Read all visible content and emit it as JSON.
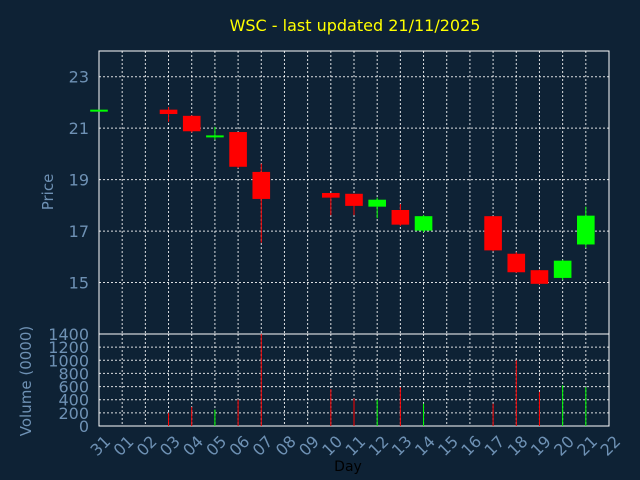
{
  "chart_data": {
    "title": "WSC - last updated 21/11/2025",
    "xlabel": "Day",
    "price_panel": {
      "type": "candlestick",
      "ylabel": "Price",
      "ylim": [
        13.0,
        24.0
      ],
      "yticks": [
        15,
        17,
        19,
        21,
        23
      ],
      "grid": true
    },
    "volume_panel": {
      "type": "bar",
      "ylabel": "Volume (0000)",
      "ylim": [
        0,
        1400
      ],
      "yticks": [
        0,
        200,
        400,
        600,
        800,
        1000,
        1200,
        1400
      ],
      "grid": true
    },
    "x_tick_labels": [
      "31",
      "01",
      "02",
      "03",
      "04",
      "05",
      "06",
      "07",
      "08",
      "09",
      "10",
      "11",
      "12",
      "13",
      "14",
      "15",
      "16",
      "17",
      "18",
      "19",
      "20",
      "21",
      "22"
    ],
    "colors": {
      "up": "#00ff00",
      "down": "#ff0000",
      "flat": "#00ff00"
    },
    "candles": [
      {
        "day": "31",
        "open": 21.72,
        "high": 21.72,
        "low": 21.72,
        "close": 21.72,
        "volume": 0
      },
      {
        "day": "03",
        "open": 21.72,
        "high": 21.82,
        "low": 21.25,
        "close": 21.55,
        "volume": 200
      },
      {
        "day": "04",
        "open": 21.48,
        "high": 21.5,
        "low": 20.83,
        "close": 20.88,
        "volume": 290
      },
      {
        "day": "05",
        "open": 20.7,
        "high": 21.05,
        "low": 20.55,
        "close": 20.72,
        "volume": 250
      },
      {
        "day": "06",
        "open": 20.85,
        "high": 20.85,
        "low": 19.45,
        "close": 19.5,
        "volume": 400
      },
      {
        "day": "07",
        "open": 19.3,
        "high": 19.62,
        "low": 16.55,
        "close": 18.25,
        "volume": 1400
      },
      {
        "day": "10",
        "open": 18.48,
        "high": 18.48,
        "low": 17.62,
        "close": 18.3,
        "volume": 560
      },
      {
        "day": "11",
        "open": 18.45,
        "high": 18.45,
        "low": 17.62,
        "close": 17.98,
        "volume": 420
      },
      {
        "day": "12",
        "open": 17.95,
        "high": 18.3,
        "low": 17.5,
        "close": 18.22,
        "volume": 400
      },
      {
        "day": "13",
        "open": 17.82,
        "high": 18.05,
        "low": 17.2,
        "close": 17.25,
        "volume": 590
      },
      {
        "day": "14",
        "open": 17.02,
        "high": 17.62,
        "low": 16.95,
        "close": 17.58,
        "volume": 340
      },
      {
        "day": "17",
        "open": 17.58,
        "high": 17.58,
        "low": 16.22,
        "close": 16.25,
        "volume": 340
      },
      {
        "day": "18",
        "open": 16.12,
        "high": 16.18,
        "low": 15.38,
        "close": 15.4,
        "volume": 1000
      },
      {
        "day": "19",
        "open": 15.48,
        "high": 15.5,
        "low": 14.92,
        "close": 14.95,
        "volume": 520
      },
      {
        "day": "20",
        "open": 15.18,
        "high": 15.88,
        "low": 15.1,
        "close": 15.85,
        "volume": 620
      },
      {
        "day": "21",
        "open": 16.48,
        "high": 17.95,
        "low": 16.35,
        "close": 17.6,
        "volume": 590
      }
    ]
  }
}
